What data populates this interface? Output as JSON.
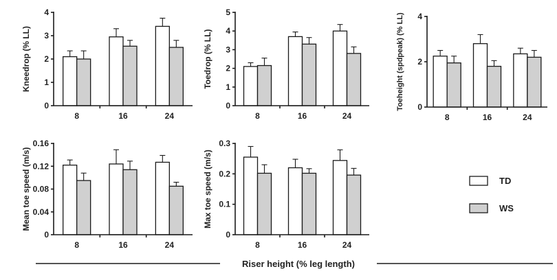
{
  "colors": {
    "TD": "#ffffff",
    "WS": "#d0d0d0",
    "edge": "#1a1a1a"
  },
  "legend": [
    {
      "label": "TD",
      "series": "TD"
    },
    {
      "label": "WS",
      "series": "WS"
    }
  ],
  "footer": {
    "xlabel": "Riser height (% leg length)"
  },
  "chart_data": [
    {
      "type": "bar",
      "title": "",
      "xlabel": "",
      "ylabel": "Kneedrop (% LL)",
      "categories": [
        "8",
        "16",
        "24"
      ],
      "ylim": [
        0,
        4
      ],
      "yticks": [
        "0",
        "1",
        "2",
        "3",
        "4"
      ],
      "grid": false,
      "series": [
        {
          "name": "TD",
          "values": [
            2.1,
            2.95,
            3.4
          ],
          "errors": [
            0.25,
            0.35,
            0.35
          ]
        },
        {
          "name": "WS",
          "values": [
            2.0,
            2.55,
            2.5
          ],
          "errors": [
            0.35,
            0.25,
            0.3
          ]
        }
      ]
    },
    {
      "type": "bar",
      "title": "",
      "xlabel": "",
      "ylabel": "Toedrop (% LL)",
      "categories": [
        "8",
        "16",
        "24"
      ],
      "ylim": [
        0,
        5
      ],
      "yticks": [
        "0",
        "1",
        "2",
        "3",
        "4",
        "5"
      ],
      "grid": false,
      "series": [
        {
          "name": "TD",
          "values": [
            2.1,
            3.7,
            4.0
          ],
          "errors": [
            0.2,
            0.25,
            0.35
          ]
        },
        {
          "name": "WS",
          "values": [
            2.15,
            3.3,
            2.8
          ],
          "errors": [
            0.4,
            0.35,
            0.35
          ]
        }
      ]
    },
    {
      "type": "bar",
      "title": "",
      "xlabel": "",
      "ylabel": "Toeheight (spdpeak) (% LL)",
      "categories": [
        "8",
        "16",
        "24"
      ],
      "ylim": [
        0,
        4
      ],
      "yticks": [
        "0",
        "2",
        "4"
      ],
      "grid": false,
      "series": [
        {
          "name": "TD",
          "values": [
            2.25,
            2.8,
            2.35
          ],
          "errors": [
            0.25,
            0.4,
            0.25
          ]
        },
        {
          "name": "WS",
          "values": [
            1.95,
            1.8,
            2.2
          ],
          "errors": [
            0.3,
            0.25,
            0.3
          ]
        }
      ]
    },
    {
      "type": "bar",
      "title": "",
      "xlabel": "",
      "ylabel": "Mean toe speed (m/s)",
      "categories": [
        "8",
        "16",
        "24"
      ],
      "ylim": [
        0,
        0.16
      ],
      "yticks": [
        "0",
        "0.04",
        "0.08",
        "0.12",
        "0.16"
      ],
      "grid": false,
      "series": [
        {
          "name": "TD",
          "values": [
            0.122,
            0.124,
            0.127
          ],
          "errors": [
            0.009,
            0.025,
            0.012
          ]
        },
        {
          "name": "WS",
          "values": [
            0.095,
            0.114,
            0.085
          ],
          "errors": [
            0.013,
            0.015,
            0.007
          ]
        }
      ]
    },
    {
      "type": "bar",
      "title": "",
      "xlabel": "",
      "ylabel": "Max toe speed (m/s)",
      "categories": [
        "8",
        "16",
        "24"
      ],
      "ylim": [
        0,
        0.3
      ],
      "yticks": [
        "0",
        "0.1",
        "0.2",
        "0.3"
      ],
      "grid": false,
      "series": [
        {
          "name": "TD",
          "values": [
            0.255,
            0.22,
            0.244
          ],
          "errors": [
            0.035,
            0.028,
            0.035
          ]
        },
        {
          "name": "WS",
          "values": [
            0.202,
            0.202,
            0.196
          ],
          "errors": [
            0.028,
            0.015,
            0.022
          ]
        }
      ]
    }
  ]
}
